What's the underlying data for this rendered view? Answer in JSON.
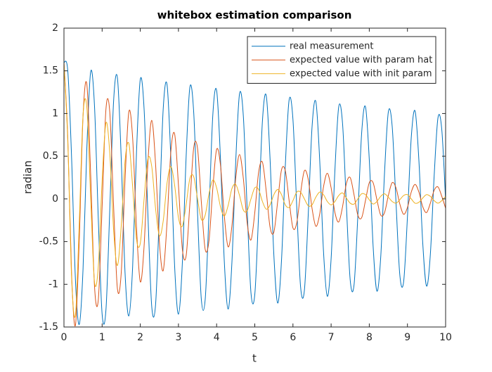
{
  "chart_data": {
    "type": "line",
    "title": "whitebox estimation comparison",
    "x_label": "t",
    "y_label": "radian",
    "xlim": [
      0,
      10
    ],
    "ylim": [
      -1.5,
      2
    ],
    "xticks": [
      0,
      1,
      2,
      3,
      4,
      5,
      6,
      7,
      8,
      9,
      10
    ],
    "yticks": [
      -1.5,
      -1,
      -0.5,
      0,
      0.5,
      1,
      1.5,
      2
    ],
    "legend": "northeast",
    "box": true,
    "x": [
      0,
      0.1,
      0.2,
      0.3,
      0.4,
      0.5,
      0.6,
      0.7,
      0.8,
      0.9,
      1,
      1.1,
      1.2,
      1.3,
      1.4,
      1.5,
      1.6,
      1.7,
      1.8,
      1.9,
      2,
      2.1,
      2.2,
      2.3,
      2.4,
      2.5,
      2.6,
      2.7,
      2.8,
      2.9,
      3,
      3.1,
      3.2,
      3.3,
      3.4,
      3.5,
      3.6,
      3.7,
      3.8,
      3.9,
      4,
      4.1,
      4.2,
      4.3,
      4.4,
      4.5,
      4.6,
      4.7,
      4.8,
      4.9,
      5,
      5.1,
      5.2,
      5.3,
      5.4,
      5.5,
      5.6,
      5.7,
      5.8,
      5.9,
      6,
      6.1,
      6.2,
      6.3,
      6.4,
      6.5,
      6.6,
      6.7,
      6.8,
      6.9,
      7,
      7.1,
      7.2,
      7.3,
      7.4,
      7.5,
      7.6,
      7.7,
      7.8,
      7.9,
      8,
      8.1,
      8.2,
      8.3,
      8.4,
      8.5,
      8.6,
      8.7,
      8.8,
      8.9,
      9,
      9.1,
      9.2,
      9.3,
      9.4,
      9.5,
      9.6,
      9.7,
      9.8,
      9.9,
      10
    ],
    "series": [
      {
        "name": "real measurement",
        "color": "#0072bd",
        "values": [
          1.6,
          1.5,
          0.48,
          -0.94,
          -1.47,
          -0.82,
          0.6,
          1.49,
          1.09,
          -0.24,
          -1.35,
          -1.3,
          -0.13,
          1.14,
          1.42,
          0.48,
          -0.86,
          -1.37,
          -0.79,
          0.54,
          1.4,
          1.05,
          -0.19,
          -1.26,
          -1.24,
          -0.15,
          1.05,
          1.34,
          0.48,
          -0.79,
          -1.35,
          -0.77,
          0.48,
          1.31,
          1.01,
          -0.16,
          -1.18,
          -1.18,
          -0.17,
          0.98,
          1.27,
          0.48,
          -0.72,
          -1.29,
          -0.75,
          0.43,
          1.23,
          0.97,
          -0.12,
          -1.1,
          -1.12,
          -0.18,
          0.91,
          1.21,
          0.47,
          -0.66,
          -1.22,
          -0.72,
          0.39,
          1.16,
          0.93,
          -0.1,
          -1.03,
          -1.07,
          -0.19,
          0.84,
          1.14,
          0.46,
          -0.61,
          -1.14,
          -0.7,
          0.34,
          1.08,
          0.88,
          -0.07,
          -0.95,
          -1.01,
          -0.2,
          0.77,
          1.08,
          0.46,
          -0.55,
          -1.08,
          -0.68,
          0.31,
          1.02,
          0.85,
          -0.04,
          -0.89,
          -0.97,
          -0.21,
          0.72,
          1.03,
          0.45,
          -0.51,
          -1.02,
          -0.65,
          0.27,
          0.95,
          0.81,
          -0.02
        ]
      },
      {
        "name": "expected value with param hat",
        "color": "#d95319",
        "values": [
          1.6,
          0.72,
          -0.88,
          -1.48,
          -0.49,
          0.97,
          1.34,
          0.28,
          -1.02,
          -1.18,
          -0.09,
          1.05,
          1.02,
          -0.08,
          -1.05,
          -0.87,
          0.22,
          1.02,
          0.71,
          -0.33,
          -0.97,
          -0.55,
          0.43,
          0.92,
          0.41,
          -0.5,
          -0.84,
          -0.28,
          0.55,
          0.76,
          0.16,
          -0.58,
          -0.67,
          -0.05,
          0.6,
          0.59,
          -0.04,
          -0.59,
          -0.49,
          0.12,
          0.58,
          0.4,
          -0.19,
          -0.56,
          -0.32,
          0.24,
          0.52,
          0.24,
          -0.28,
          -0.48,
          -0.16,
          0.31,
          0.43,
          0.09,
          -0.33,
          -0.39,
          -0.03,
          0.34,
          0.33,
          -0.02,
          -0.34,
          -0.28,
          0.07,
          0.33,
          0.23,
          -0.11,
          -0.32,
          -0.18,
          0.14,
          0.3,
          0.13,
          -0.16,
          -0.27,
          -0.09,
          0.18,
          0.25,
          0.05,
          -0.19,
          -0.22,
          -0.02,
          0.19,
          0.19,
          -0.01,
          -0.19,
          -0.16,
          0.04,
          0.19,
          0.13,
          -0.06,
          -0.18,
          -0.1,
          0.08,
          0.17,
          0.08,
          -0.09,
          -0.16,
          -0.05,
          0.1,
          0.14,
          0.03,
          -0.11
        ]
      },
      {
        "name": "expected value with init param",
        "color": "#edb120",
        "values": [
          1.6,
          0.67,
          -0.92,
          -1.36,
          -0.29,
          0.98,
          1.07,
          0,
          -0.97,
          -0.79,
          0.22,
          0.89,
          0.54,
          -0.36,
          -0.78,
          -0.32,
          0.44,
          0.65,
          0.14,
          -0.47,
          -0.52,
          0,
          0.47,
          0.38,
          -0.11,
          -0.43,
          -0.26,
          0.18,
          0.38,
          0.16,
          -0.22,
          -0.32,
          -0.07,
          0.24,
          0.26,
          0,
          -0.24,
          -0.19,
          0.06,
          0.22,
          0.13,
          -0.09,
          -0.2,
          -0.08,
          0.12,
          0.17,
          0.04,
          -0.13,
          -0.14,
          0,
          0.13,
          0.11,
          -0.03,
          -0.12,
          -0.07,
          0.05,
          0.11,
          0.05,
          -0.07,
          -0.1,
          -0.02,
          0.08,
          0.08,
          0,
          -0.08,
          -0.07,
          0.02,
          0.08,
          0.05,
          -0.03,
          -0.07,
          -0.03,
          0.04,
          0.07,
          0.01,
          -0.05,
          -0.06,
          0,
          0.06,
          0.05,
          -0.01,
          -0.06,
          -0.03,
          0.03,
          0.06,
          0.02,
          -0.03,
          -0.05,
          -0.01,
          0.04,
          0.05,
          0,
          -0.05,
          -0.04,
          0.01,
          0.05,
          0.03,
          -0.02,
          -0.05,
          -0.02,
          0.03
        ]
      }
    ]
  }
}
